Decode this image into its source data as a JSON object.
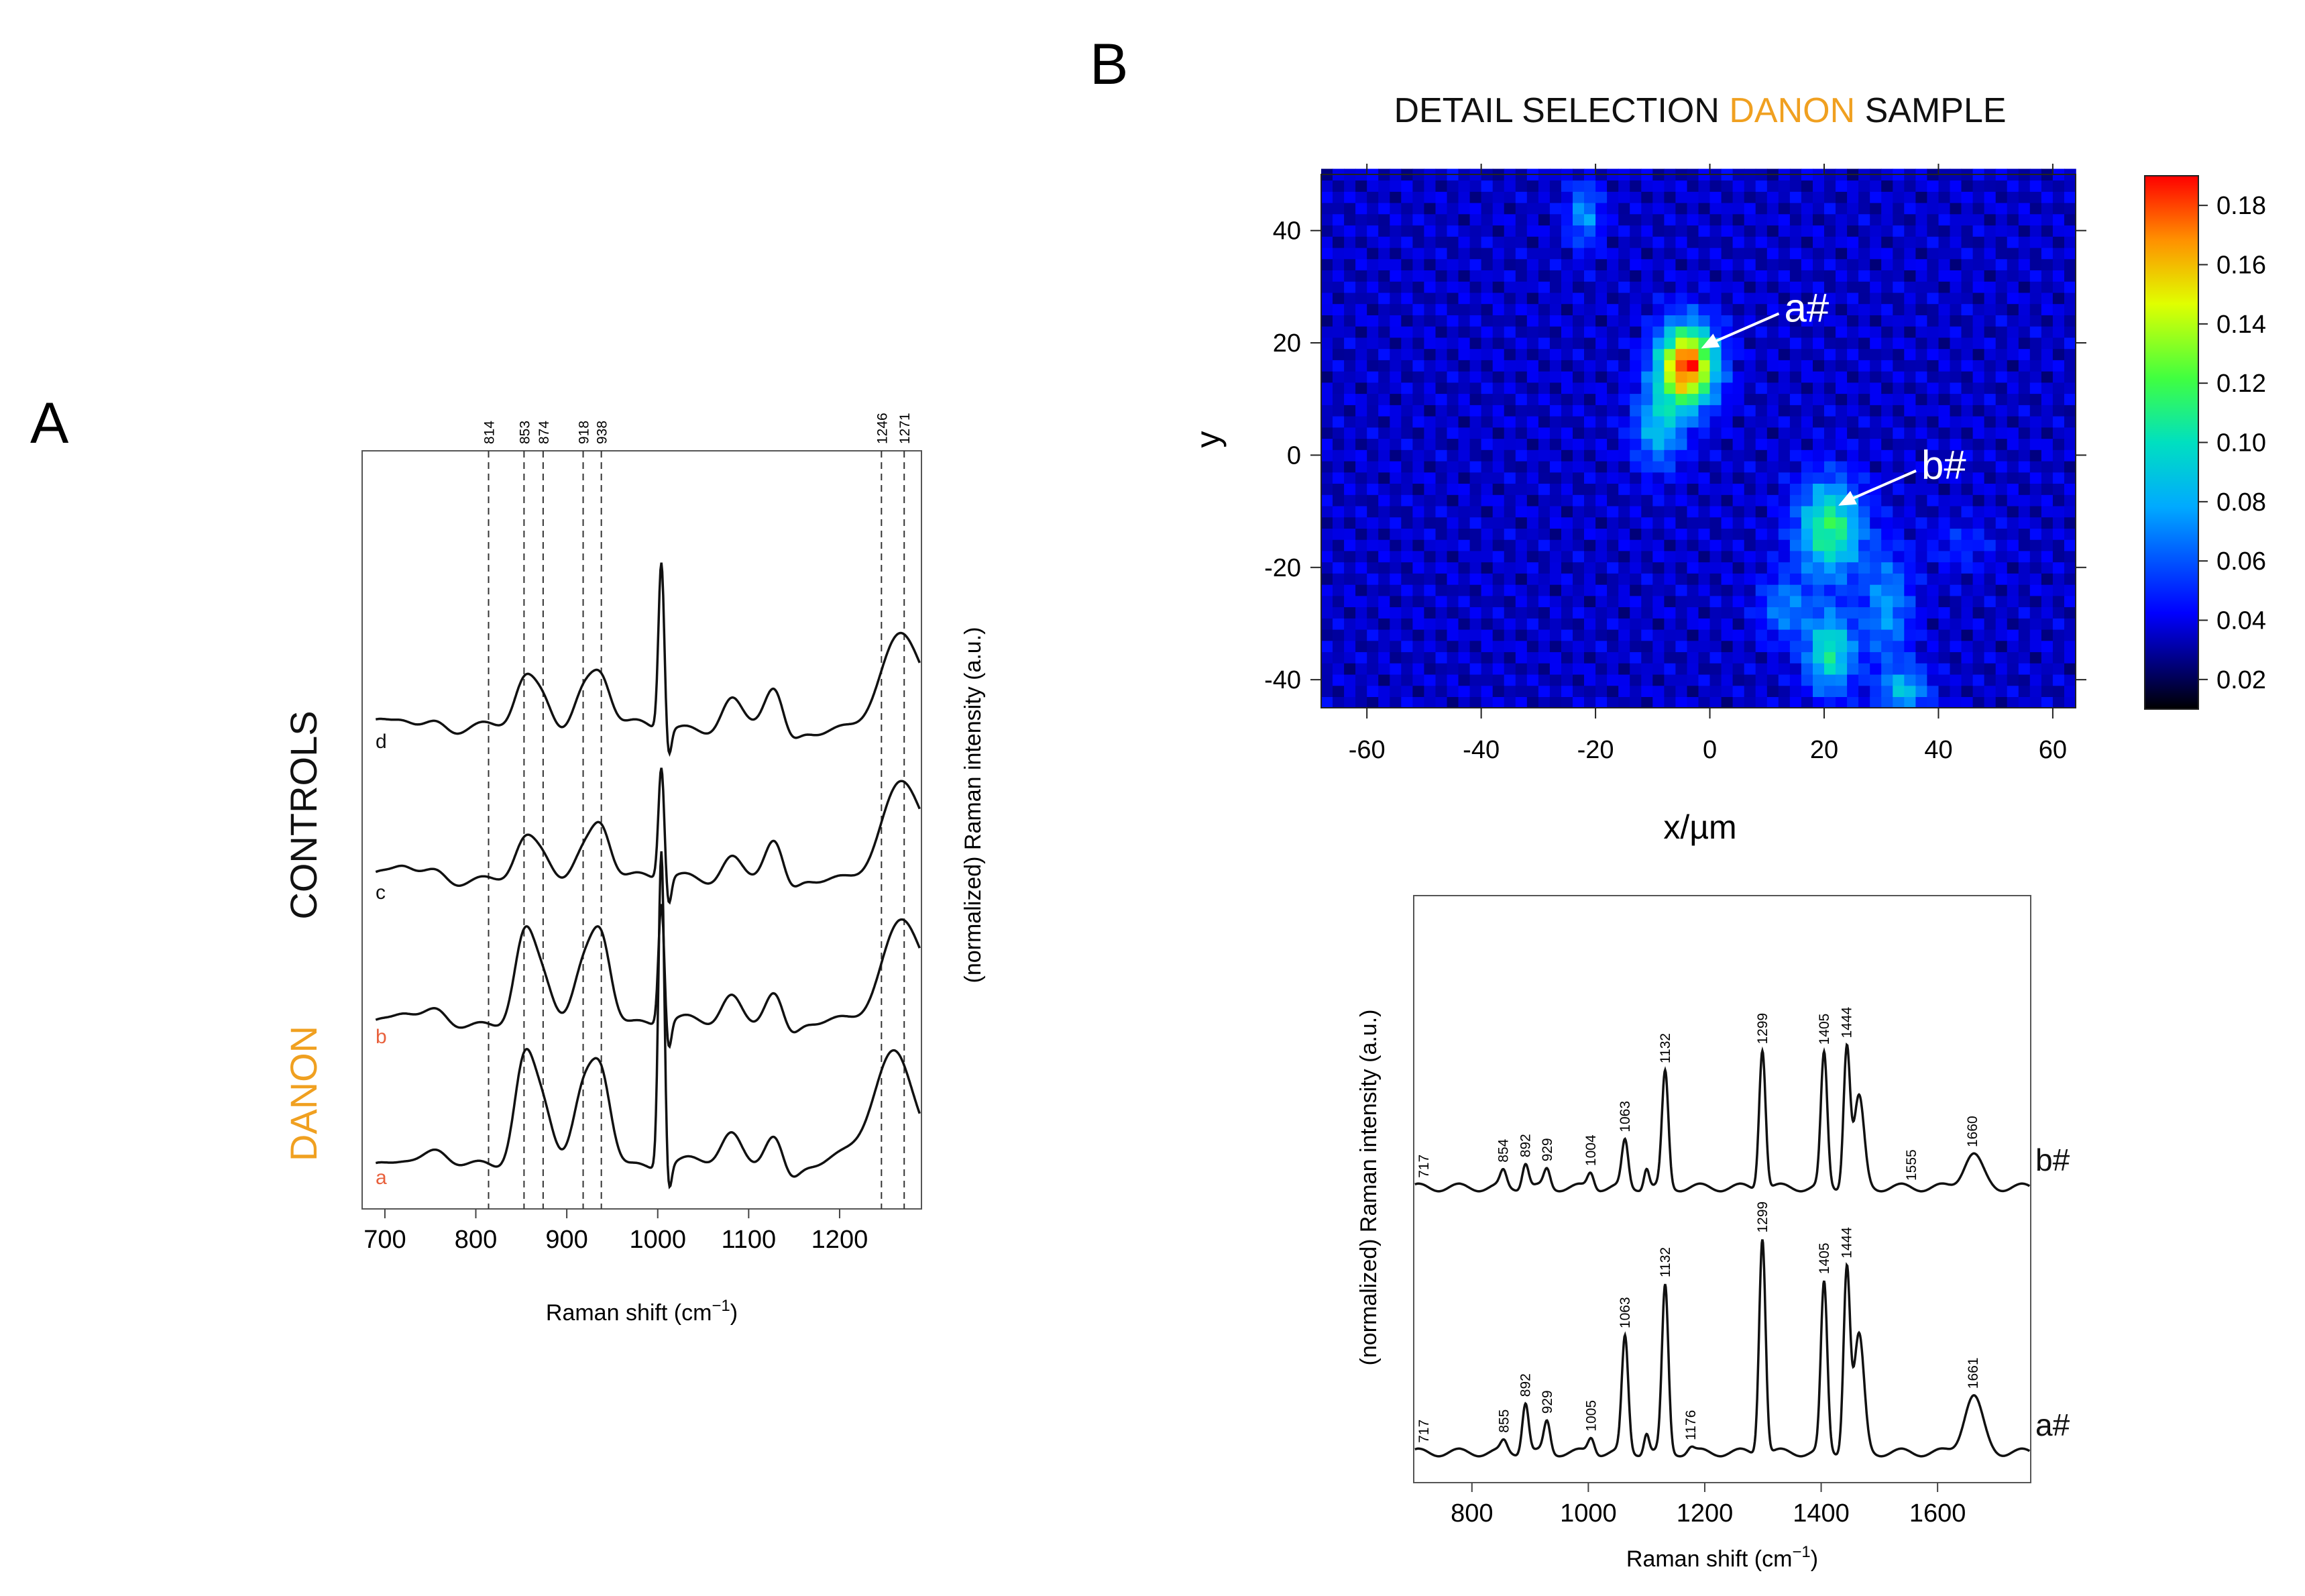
{
  "panels": {
    "a_letter": "A",
    "b_letter": "B"
  },
  "chart_data": [
    {
      "id": "panelA",
      "type": "line",
      "title": "",
      "xlabel": "Raman shift (cm",
      "xlabel_sup": "−1",
      "xlabel_close": ")",
      "ylabel": "(normalized) Raman intensity (a.u.)",
      "xlim": [
        675,
        1290
      ],
      "xticks": [
        700,
        800,
        900,
        1000,
        1100,
        1200
      ],
      "peak_lines": [
        814,
        853,
        874,
        918,
        938,
        1246,
        1271
      ],
      "groups": [
        {
          "label": "CONTROLS",
          "color": "#111111"
        },
        {
          "label": "DANON",
          "color": "#f0a020"
        }
      ],
      "series": [
        {
          "name": "d",
          "group": "CONTROLS",
          "color": "#111111",
          "offset": 3,
          "peaks": [
            [
              720,
              0.12
            ],
            [
              760,
              0.08
            ],
            [
              853,
              0.45
            ],
            [
              874,
              0.3
            ],
            [
              918,
              0.35
            ],
            [
              938,
              0.55
            ],
            [
              1004,
              1.8
            ],
            [
              1080,
              0.3
            ],
            [
              1128,
              0.45
            ],
            [
              1270,
              0.95
            ]
          ]
        },
        {
          "name": "c",
          "group": "CONTROLS",
          "color": "#111111",
          "offset": 2,
          "peaks": [
            [
              720,
              0.15
            ],
            [
              760,
              0.08
            ],
            [
              853,
              0.35
            ],
            [
              874,
              0.2
            ],
            [
              918,
              0.25
            ],
            [
              938,
              0.6
            ],
            [
              1004,
              1.2
            ],
            [
              1080,
              0.25
            ],
            [
              1128,
              0.45
            ],
            [
              1270,
              1.0
            ]
          ]
        },
        {
          "name": "b",
          "group": "DANON",
          "color": "#e8603c",
          "offset": 1,
          "peaks": [
            [
              720,
              0.12
            ],
            [
              760,
              0.1
            ],
            [
              853,
              0.9
            ],
            [
              874,
              0.4
            ],
            [
              918,
              0.5
            ],
            [
              938,
              0.95
            ],
            [
              1004,
              1.3
            ],
            [
              1080,
              0.3
            ],
            [
              1128,
              0.4
            ],
            [
              1270,
              1.1
            ]
          ]
        },
        {
          "name": "a",
          "group": "DANON",
          "color": "#e8603c",
          "offset": 0,
          "peaks": [
            [
              720,
              0.08
            ],
            [
              760,
              0.08
            ],
            [
              853,
              1.1
            ],
            [
              874,
              0.55
            ],
            [
              918,
              0.65
            ],
            [
              938,
              0.95
            ],
            [
              1004,
              3.4
            ],
            [
              1080,
              0.3
            ],
            [
              1128,
              0.4
            ],
            [
              1260,
              1.2
            ]
          ]
        }
      ]
    },
    {
      "id": "panelB_map",
      "type": "heatmap",
      "title_parts": [
        "DETAIL SELECTION ",
        "DANON",
        " SAMPLE"
      ],
      "title_colors": [
        "#111111",
        "#f0a020",
        "#111111"
      ],
      "xlabel": "x/µm",
      "ylabel": "y",
      "xlim": [
        -68,
        64
      ],
      "ylim": [
        -45,
        50
      ],
      "xticks": [
        -60,
        -40,
        -20,
        0,
        20,
        40,
        60
      ],
      "yticks": [
        -40,
        -20,
        0,
        20,
        40
      ],
      "colorbar": {
        "min": 0.01,
        "max": 0.19,
        "ticks": [
          0.02,
          0.04,
          0.06,
          0.08,
          0.1,
          0.12,
          0.14,
          0.16,
          0.18
        ],
        "tick_labels": [
          "0.02",
          "0.04",
          "0.06",
          "0.08",
          "0.10",
          "0.12",
          "0.14",
          "0.16",
          "0.18"
        ]
      },
      "background_value": 0.035,
      "blobs": [
        {
          "x": -4,
          "y": 16,
          "amp": 0.15,
          "sx": 3.5,
          "sy": 5
        },
        {
          "x": -9,
          "y": 5,
          "amp": 0.05,
          "sx": 3,
          "sy": 5
        },
        {
          "x": 21,
          "y": -13,
          "amp": 0.08,
          "sx": 4,
          "sy": 6
        },
        {
          "x": 21,
          "y": -35,
          "amp": 0.07,
          "sx": 3,
          "sy": 5
        },
        {
          "x": 13,
          "y": -27,
          "amp": 0.035,
          "sx": 3,
          "sy": 4
        },
        {
          "x": 31,
          "y": -27,
          "amp": 0.04,
          "sx": 3,
          "sy": 7
        },
        {
          "x": 34,
          "y": -42,
          "amp": 0.05,
          "sx": 3,
          "sy": 3
        },
        {
          "x": -22,
          "y": 43,
          "amp": 0.04,
          "sx": 2,
          "sy": 4
        },
        {
          "x": 44,
          "y": -16,
          "amp": 0.015,
          "sx": 4,
          "sy": 3
        }
      ],
      "annotations": [
        {
          "label": "a#",
          "target_x": -2,
          "target_y": 19
        },
        {
          "label": "b#",
          "target_x": 22,
          "target_y": -9
        }
      ]
    },
    {
      "id": "panelB_spectra",
      "type": "line",
      "xlabel": "Raman shift (cm",
      "xlabel_sup": "−1",
      "xlabel_close": ")",
      "ylabel": "(normalized) Raman intensity (a.u.)",
      "xlim": [
        700,
        1760
      ],
      "xticks": [
        800,
        1000,
        1200,
        1400,
        1600
      ],
      "series": [
        {
          "name": "b#",
          "offset": 1,
          "peaks": [
            [
              717,
              0.0
            ],
            [
              854,
              0.06
            ],
            [
              892,
              0.1
            ],
            [
              929,
              0.07
            ],
            [
              1004,
              0.06
            ],
            [
              1063,
              0.18
            ],
            [
              1132,
              0.45
            ],
            [
              1299,
              0.55
            ],
            [
              1405,
              0.52
            ],
            [
              1444,
              0.55
            ],
            [
              1555,
              0.0
            ],
            [
              1660,
              0.13
            ]
          ],
          "labels": [
            "717",
            "854",
            "892",
            "929",
            "1004",
            "1063",
            "1132",
            "1299",
            "1405",
            "1444",
            "1555",
            "1660"
          ]
        },
        {
          "name": "a#",
          "offset": 0,
          "peaks": [
            [
              717,
              0.0
            ],
            [
              855,
              0.04
            ],
            [
              892,
              0.2
            ],
            [
              929,
              0.12
            ],
            [
              1005,
              0.06
            ],
            [
              1063,
              0.45
            ],
            [
              1132,
              0.65
            ],
            [
              1176,
              0.02
            ],
            [
              1299,
              0.85
            ],
            [
              1405,
              0.66
            ],
            [
              1444,
              0.72
            ],
            [
              1661,
              0.22
            ]
          ],
          "labels": [
            "717",
            "855",
            "892",
            "929",
            "1005",
            "1063",
            "1132",
            "1176",
            "1299",
            "1405",
            "1444",
            "1661"
          ]
        }
      ]
    }
  ]
}
